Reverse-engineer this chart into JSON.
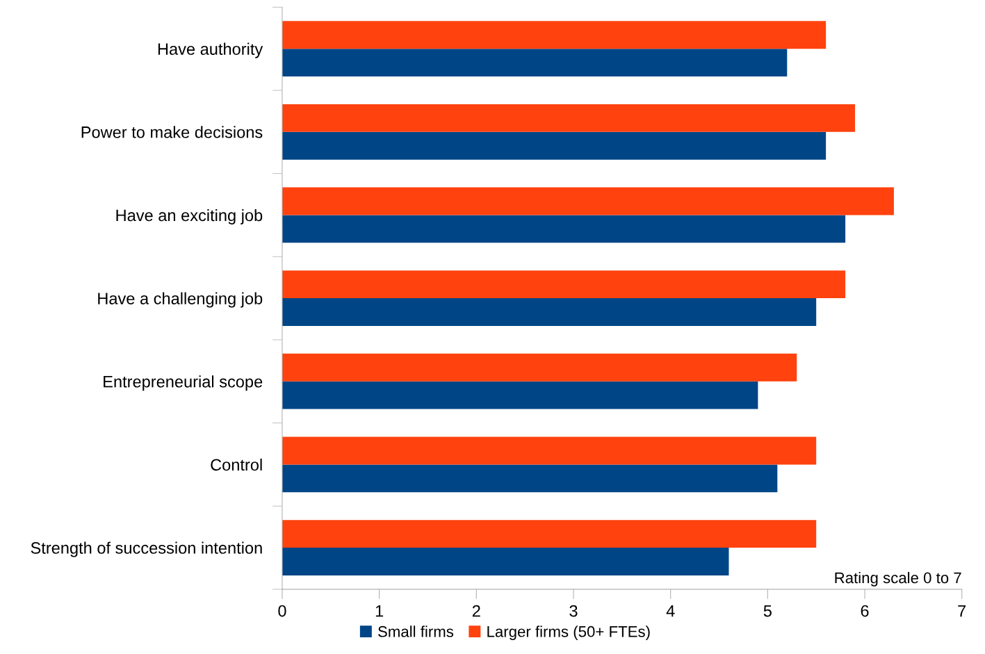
{
  "chart_data": {
    "type": "bar",
    "orientation": "horizontal",
    "categories": [
      "Have authority",
      "Power to make decisions",
      "Have an exciting job",
      "Have a challenging job",
      "Entrepreneurial scope",
      "Control",
      "Strength of succession intention"
    ],
    "series": [
      {
        "name": "Small firms",
        "color": "#004586",
        "values": [
          5.2,
          5.6,
          5.8,
          5.5,
          4.9,
          5.1,
          4.6
        ]
      },
      {
        "name": "Larger firms (50+ FTEs)",
        "color": "#ff420e",
        "values": [
          5.6,
          5.9,
          6.3,
          5.8,
          5.3,
          5.5,
          5.5
        ]
      }
    ],
    "xlim": [
      0,
      7
    ],
    "xticks": [
      0,
      1,
      2,
      3,
      4,
      5,
      6,
      7
    ],
    "annotations": [
      "Rating scale 0 to 7"
    ],
    "grid": false,
    "legend": "bottom"
  }
}
